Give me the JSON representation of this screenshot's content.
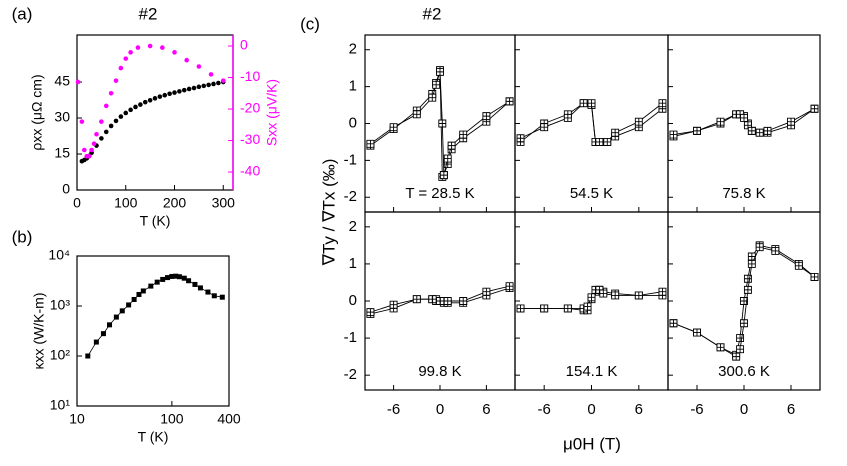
{
  "chart_data": [
    {
      "type": "scatter",
      "panel_label": "(a)",
      "title": "#2",
      "x_label": "T (K)",
      "y_label": "ρxx (μΩ cm)",
      "y2_label": "Sxx (μV/K)",
      "xlim": [
        0,
        320
      ],
      "xticks": [
        0,
        100,
        200,
        300
      ],
      "ylim": [
        0,
        64.6
      ],
      "yticks": [
        0,
        15,
        30,
        45
      ],
      "y2lim": [
        -45.7,
        3.5
      ],
      "y2ticks": [
        0,
        -10,
        -20,
        -30,
        -40
      ],
      "y2_color": "#ff00ff",
      "series": [
        {
          "name": "ρxx",
          "color": "#000000",
          "marker": "circle",
          "x": [
            10,
            15,
            20,
            25,
            30,
            40,
            50,
            60,
            70,
            80,
            90,
            100,
            110,
            120,
            130,
            140,
            150,
            160,
            170,
            180,
            190,
            200,
            210,
            220,
            230,
            240,
            250,
            260,
            270,
            280,
            290,
            300
          ],
          "values": [
            12,
            12.5,
            13.2,
            14.2,
            15.5,
            18.5,
            21.5,
            24.2,
            26.7,
            28.8,
            30.6,
            32.1,
            33.4,
            34.6,
            35.6,
            36.6,
            37.4,
            38.2,
            38.9,
            39.5,
            40.1,
            40.6,
            41.1,
            41.6,
            42.1,
            42.5,
            43,
            43.4,
            43.8,
            44.2,
            44.6,
            45
          ]
        },
        {
          "name": "Sxx",
          "color": "#ff00ff",
          "marker": "circle",
          "axis": "y2",
          "x": [
            2,
            10,
            15,
            20,
            25,
            30,
            35,
            40,
            50,
            60,
            70,
            80,
            90,
            100,
            110,
            125,
            150,
            175,
            200,
            225,
            250,
            275,
            300
          ],
          "values": [
            -11.4,
            -24,
            -33,
            -35,
            -35,
            -33,
            -31,
            -28,
            -24,
            -19,
            -15,
            -11,
            -7,
            -4,
            -2,
            -0.5,
            0,
            -0.5,
            -2,
            -4.5,
            -6.5,
            -9,
            -11
          ]
        }
      ]
    },
    {
      "type": "scatter",
      "panel_label": "(b)",
      "x_label": "T (K)",
      "y_label": "κxx (W/K-m)",
      "xscale": "log",
      "yscale": "log",
      "xlim": [
        10,
        400
      ],
      "xticks": [
        10,
        100,
        400
      ],
      "ylim": [
        10,
        10000
      ],
      "yticks": [
        {
          "value": 10,
          "label": "10¹"
        },
        {
          "value": 100,
          "label": "10²"
        },
        {
          "value": 1000,
          "label": "10³"
        },
        {
          "value": 10000,
          "label": "10⁴"
        }
      ],
      "series": [
        {
          "name": "κxx",
          "color": "#000000",
          "marker": "square",
          "line": true,
          "x": [
            13,
            16,
            19,
            22,
            26,
            30,
            35,
            40,
            45,
            50,
            60,
            70,
            80,
            90,
            100,
            110,
            120,
            135,
            150,
            175,
            200,
            240,
            280,
            340
          ],
          "values": [
            100,
            190,
            280,
            420,
            600,
            800,
            1050,
            1350,
            1700,
            2000,
            2500,
            3000,
            3400,
            3700,
            3900,
            3950,
            3850,
            3600,
            3200,
            2700,
            2300,
            1900,
            1600,
            1500
          ]
        }
      ]
    },
    {
      "type": "line",
      "panel_label": "(c)",
      "title": "#2",
      "x_label": "μ0H (T)",
      "y_label": "∇Ty / ∇Tx (‰)",
      "xlim": [
        -9.7,
        9.7
      ],
      "xticks": [
        -6,
        0,
        6
      ],
      "ylim": [
        -2.4,
        2.4
      ],
      "yticks": [
        -2,
        -1,
        0,
        1,
        2
      ],
      "color": "#000000",
      "panels": [
        {
          "annotation": "T = 28.5 K",
          "series": [
            {
              "x": [
                -9,
                -6,
                -3,
                -1,
                -0.5,
                0,
                0.3,
                0.5,
                1,
                1.5,
                3,
                6,
                9
              ],
              "values": [
                -0.6,
                -0.15,
                0.35,
                0.8,
                1.1,
                1.45,
                -1.45,
                -1.4,
                -1.1,
                -0.7,
                -0.4,
                0.05,
                0.6
              ]
            },
            {
              "x": [
                -9,
                -6,
                -3,
                -1,
                -0.5,
                0,
                0.3,
                0.5,
                1,
                1.5,
                3,
                6,
                9
              ],
              "values": [
                -0.55,
                -0.1,
                0.25,
                0.7,
                1.05,
                1.4,
                0,
                -1.4,
                -0.95,
                -0.6,
                -0.3,
                0.2,
                0.6
              ]
            }
          ]
        },
        {
          "annotation": "54.5 K",
          "series": [
            {
              "x": [
                -9,
                -6,
                -3,
                -1,
                0,
                0.5,
                1,
                2,
                3,
                6,
                9
              ],
              "values": [
                -0.5,
                0,
                0.25,
                0.55,
                0.5,
                -0.5,
                -0.5,
                -0.5,
                -0.35,
                -0.1,
                0.4
              ]
            },
            {
              "x": [
                -9,
                -6,
                -3,
                -1,
                0,
                0.5,
                1,
                2,
                3,
                6,
                9
              ],
              "values": [
                -0.4,
                -0.1,
                0.15,
                0.55,
                0.55,
                -0.5,
                -0.5,
                -0.5,
                -0.25,
                0.05,
                0.55
              ]
            }
          ]
        },
        {
          "annotation": "75.8 K",
          "series": [
            {
              "x": [
                -9,
                -6,
                -3,
                -1,
                -0.5,
                0,
                0.5,
                1,
                2,
                3,
                6,
                9
              ],
              "values": [
                -0.35,
                -0.2,
                0,
                0.25,
                0.25,
                0.2,
                0,
                -0.2,
                -0.25,
                -0.25,
                -0.05,
                0.4
              ]
            },
            {
              "x": [
                -9,
                -6,
                -3,
                -1,
                -0.5,
                0,
                0.5,
                1,
                2,
                3,
                6,
                9
              ],
              "values": [
                -0.3,
                -0.2,
                0.05,
                0.25,
                0.25,
                0.15,
                -0.05,
                -0.2,
                -0.25,
                -0.2,
                0.05,
                0.4
              ]
            }
          ]
        },
        {
          "annotation": "99.8 K",
          "series": [
            {
              "x": [
                -9,
                -6,
                -3,
                -1,
                -0.5,
                0,
                0.5,
                1,
                3,
                6,
                9
              ],
              "values": [
                -0.35,
                -0.2,
                0.05,
                0.05,
                0,
                0,
                -0.05,
                -0.05,
                -0.05,
                0.15,
                0.35
              ]
            },
            {
              "x": [
                -9,
                -6,
                -3,
                -1,
                -0.5,
                0,
                0.5,
                1,
                3,
                6,
                9
              ],
              "values": [
                -0.3,
                -0.1,
                0.05,
                0.05,
                0.05,
                0,
                0,
                0,
                0,
                0.25,
                0.4
              ]
            }
          ]
        },
        {
          "annotation": "154.1 K",
          "series": [
            {
              "x": [
                -9,
                -6,
                -3,
                -1,
                -0.5,
                0,
                0.5,
                1,
                1.5,
                3,
                6,
                9
              ],
              "values": [
                -0.2,
                -0.2,
                -0.2,
                -0.25,
                -0.25,
                0.05,
                0.25,
                0.3,
                0.25,
                0.2,
                0.15,
                0.15
              ]
            },
            {
              "x": [
                -9,
                -6,
                -3,
                -1,
                -0.5,
                0,
                0.5,
                1,
                1.5,
                3,
                6,
                9
              ],
              "values": [
                -0.2,
                -0.2,
                -0.2,
                -0.2,
                -0.15,
                0.1,
                0.3,
                0.3,
                0.2,
                0.15,
                0.15,
                0.25
              ]
            }
          ]
        },
        {
          "annotation": "300.6 K",
          "series": [
            {
              "x": [
                -9,
                -6,
                -3,
                -1,
                -0.5,
                0,
                0.5,
                1,
                2,
                4,
                7,
                9
              ],
              "values": [
                -0.6,
                -0.85,
                -1.25,
                -1.45,
                -1,
                0,
                0.6,
                1.2,
                1.5,
                1.4,
                1,
                0.65
              ]
            },
            {
              "x": [
                -9,
                -6,
                -3,
                -1,
                -0.5,
                0,
                0.5,
                1,
                2,
                4,
                7,
                9
              ],
              "values": [
                -0.6,
                -0.85,
                -1.25,
                -1.5,
                -1.3,
                -0.6,
                0.3,
                1,
                1.45,
                1.35,
                0.95,
                0.65
              ]
            }
          ]
        }
      ]
    }
  ]
}
